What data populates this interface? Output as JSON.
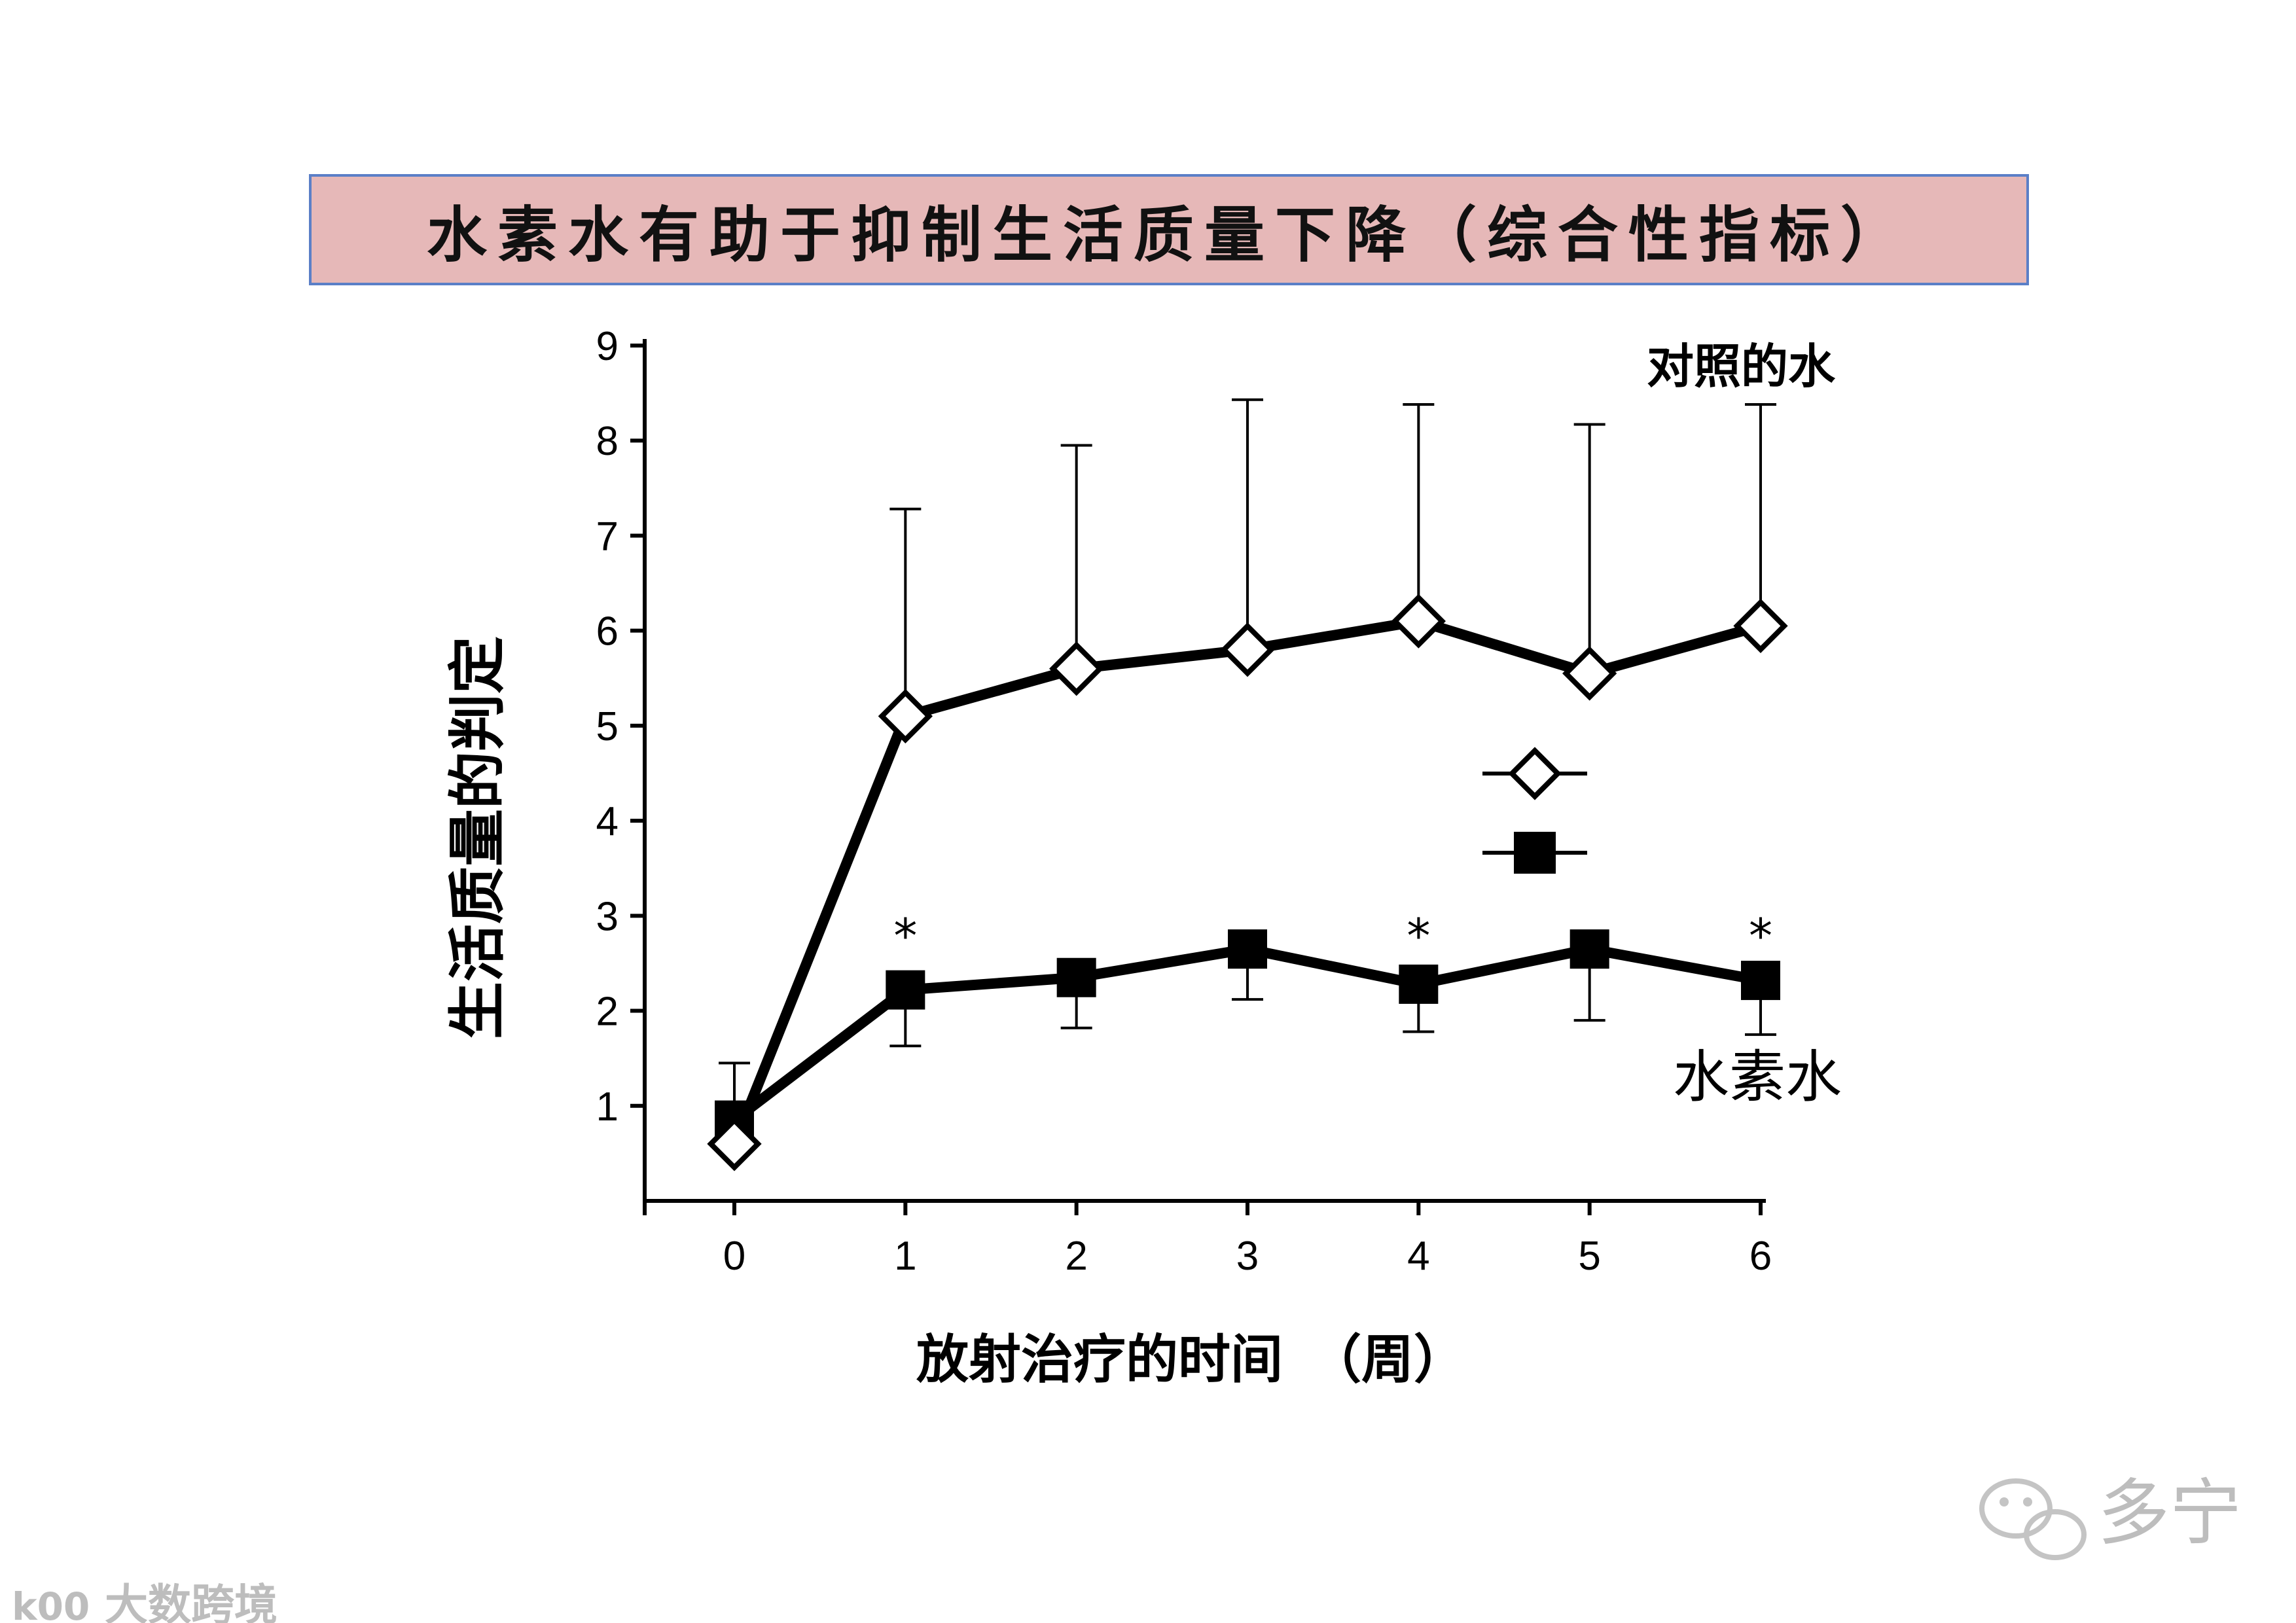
{
  "chart_data": {
    "type": "line",
    "title": "水素水有助于抑制生活质量下降（综合性指标）",
    "xlabel": "放射治疗的时间　（周）",
    "ylabel": "生活质量的判定",
    "x": [
      0,
      1,
      2,
      3,
      4,
      5,
      6
    ],
    "xlim": [
      0,
      6
    ],
    "ylim": [
      0,
      9
    ],
    "yticks": [
      1,
      2,
      3,
      4,
      5,
      6,
      7,
      8,
      9
    ],
    "xticks": [
      0,
      1,
      2,
      3,
      4,
      5,
      6
    ],
    "grid": false,
    "series": [
      {
        "name": "对照的水",
        "marker": "open-diamond",
        "values": [
          0.6,
          5.1,
          5.6,
          5.8,
          6.1,
          5.55,
          6.05
        ],
        "error_upper": [
          1.45,
          7.28,
          7.95,
          8.43,
          8.38,
          8.17,
          8.38
        ]
      },
      {
        "name": "水素水",
        "marker": "filled-square",
        "values": [
          0.85,
          2.22,
          2.35,
          2.65,
          2.28,
          2.65,
          2.32
        ],
        "error_lower": [
          0.85,
          1.63,
          1.82,
          2.12,
          1.78,
          1.9,
          1.75
        ]
      }
    ],
    "annotations": [
      {
        "text": "*",
        "x": 1
      },
      {
        "text": "*",
        "x": 4
      },
      {
        "text": "*",
        "x": 6
      }
    ]
  },
  "colors": {
    "title_bg": "#e6b8b8",
    "title_border": "#5b7fc7",
    "line": "#000000"
  },
  "watermarks": {
    "bottom_right": "多宁",
    "bottom_left": "大数跨境",
    "bottom_left_logo": "k00"
  },
  "icons": {
    "bottom_right": "wechat-icon"
  }
}
